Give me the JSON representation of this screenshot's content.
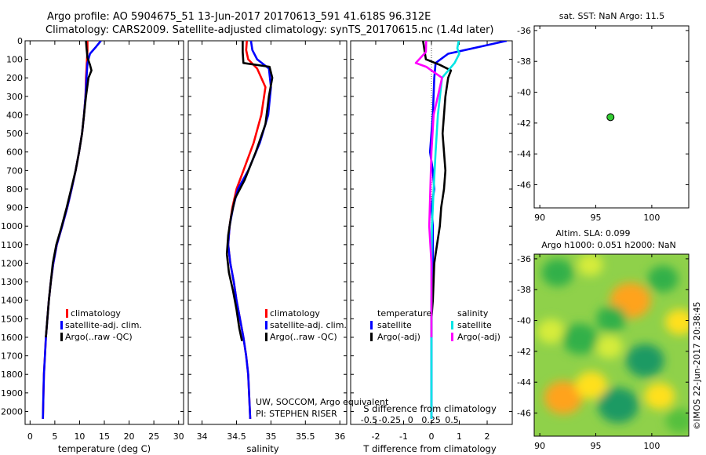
{
  "header": {
    "title1": "Argo profile: AO 5904675_51 13-Jun-2017 20170613_591 41.618S 96.312E",
    "title2": "Climatology: CARS2009. Satellite-adjusted climatology: synTS_20170615.nc (1.4d later)"
  },
  "footer": {
    "credit1": "UW, SOCCOM, Argo equivalent",
    "credit2": "PI: STEPHEN RISER",
    "stamp": "©IMOS 22-Jun-2017 20:38:45"
  },
  "colors": {
    "climatology": "#ff0000",
    "satellite": "#0000ff",
    "argo": "#000000",
    "sal_satellite": "#00e5e5",
    "sal_argo": "#ff00ff",
    "map_marker": "#33cc33"
  },
  "chart_data": [
    {
      "id": "temperature",
      "type": "line",
      "xlabel": "temperature (deg C)",
      "ylabel": "",
      "xlim": [
        -1,
        31
      ],
      "ylim": [
        2070,
        0
      ],
      "xticks": [
        0,
        5,
        10,
        15,
        20,
        25,
        30
      ],
      "yticks": [
        0,
        100,
        200,
        300,
        400,
        500,
        600,
        700,
        800,
        900,
        1000,
        1100,
        1200,
        1300,
        1400,
        1500,
        1600,
        1700,
        1800,
        1900,
        2000
      ],
      "legend": [
        "climatology",
        "satellite-adj. clim.",
        "Argo(..raw -QC)"
      ],
      "series": [
        {
          "name": "climatology",
          "color": "#ff0000",
          "x": [
            11.6,
            11.6,
            11.5,
            11.4,
            11.3,
            11.2,
            10.9,
            10.5,
            9.9,
            9.2,
            8.4,
            7.5,
            6.5,
            5.4,
            4.7,
            4.2,
            3.8,
            3.5,
            3.2,
            3.0,
            2.8,
            2.7,
            2.6
          ],
          "y": [
            0,
            50,
            100,
            150,
            200,
            300,
            400,
            500,
            600,
            700,
            800,
            900,
            1000,
            1100,
            1200,
            1300,
            1400,
            1500,
            1600,
            1700,
            1800,
            1900,
            2040
          ]
        },
        {
          "name": "satellite-adj. clim.",
          "color": "#0000ff",
          "x": [
            14.3,
            13.4,
            12.1,
            11.6,
            11.4,
            11.2,
            10.9,
            10.5,
            9.9,
            9.2,
            8.4,
            7.5,
            6.5,
            5.4,
            4.7,
            4.2,
            3.8,
            3.5,
            3.2,
            3.0,
            2.8,
            2.7,
            2.6
          ],
          "y": [
            0,
            30,
            70,
            120,
            200,
            300,
            400,
            500,
            600,
            700,
            800,
            900,
            1000,
            1100,
            1200,
            1300,
            1400,
            1500,
            1600,
            1700,
            1800,
            1900,
            2040
          ]
        },
        {
          "name": "Argo(..raw -QC)",
          "color": "#000000",
          "x": [
            11.3,
            11.4,
            11.6,
            12.1,
            12.4,
            11.8,
            11.3,
            10.9,
            10.5,
            9.9,
            9.2,
            8.3,
            7.4,
            6.4,
            5.3,
            4.6,
            4.2,
            3.8,
            3.5,
            3.2
          ],
          "y": [
            0,
            40,
            90,
            130,
            160,
            200,
            300,
            400,
            500,
            600,
            700,
            800,
            900,
            1000,
            1100,
            1200,
            1300,
            1400,
            1500,
            1600
          ]
        }
      ]
    },
    {
      "id": "salinity",
      "type": "line",
      "xlabel": "salinity",
      "ylabel": "",
      "xlim": [
        33.8,
        36.1
      ],
      "ylim": [
        2070,
        0
      ],
      "xticks": [
        34,
        34.5,
        35,
        35.5,
        36
      ],
      "xticklabels": [
        "34",
        "34.5",
        "35",
        "35.5",
        "36"
      ],
      "legend": [
        "climatology",
        "satellite-adj. clim.",
        "Argo(..raw -QC)"
      ],
      "series": [
        {
          "name": "climatology",
          "color": "#ff0000",
          "x": [
            34.65,
            34.64,
            34.67,
            34.8,
            34.92,
            34.86,
            34.75,
            34.6,
            34.5,
            34.44,
            34.4,
            34.38,
            34.41,
            34.46,
            34.5,
            34.55,
            34.6,
            34.64,
            34.67,
            34.7
          ],
          "y": [
            0,
            50,
            100,
            150,
            250,
            400,
            550,
            700,
            800,
            900,
            1000,
            1100,
            1200,
            1300,
            1400,
            1500,
            1600,
            1700,
            1800,
            2040
          ]
        },
        {
          "name": "satellite-adj. clim.",
          "color": "#0000ff",
          "x": [
            34.71,
            34.73,
            34.8,
            34.97,
            35.0,
            34.96,
            34.84,
            34.67,
            34.52,
            34.45,
            34.4,
            34.38,
            34.41,
            34.46,
            34.5,
            34.55,
            34.6,
            34.64,
            34.67,
            34.7
          ],
          "y": [
            0,
            50,
            100,
            150,
            250,
            400,
            550,
            700,
            800,
            900,
            1000,
            1100,
            1200,
            1300,
            1400,
            1500,
            1600,
            1700,
            1800,
            2040
          ]
        },
        {
          "name": "Argo(..raw -QC)",
          "color": "#000000",
          "x": [
            34.59,
            34.59,
            34.6,
            34.98,
            35.02,
            34.97,
            34.92,
            34.78,
            34.62,
            34.48,
            34.42,
            34.38,
            34.36,
            34.39,
            34.45,
            34.5,
            34.54,
            34.58
          ],
          "y": [
            0,
            60,
            120,
            140,
            200,
            300,
            450,
            600,
            750,
            850,
            950,
            1050,
            1150,
            1250,
            1350,
            1450,
            1550,
            1620
          ]
        }
      ]
    },
    {
      "id": "difference",
      "type": "line",
      "xlabel": "T difference from climatology",
      "xlabel_top": "S difference from climatology",
      "ylabel": "",
      "xlim": [
        -2.9,
        2.9
      ],
      "ylim": [
        2070,
        0
      ],
      "xticks": [
        -2,
        -1,
        0,
        1,
        2
      ],
      "xticks_top": [
        -0.5,
        -0.25,
        0,
        0.25,
        0.5
      ],
      "xticklabels_top": [
        "-0.5",
        "-0.25",
        "0",
        "0.25",
        "0.5"
      ],
      "legend_temperature_title": "temperature",
      "legend_salinity_title": "salinity",
      "legend_temperature": [
        "satellite",
        "Argo(-adj)"
      ],
      "legend_salinity": [
        "satellite",
        "Argo(-adj)"
      ],
      "series": [
        {
          "name": "T satellite",
          "color": "#0000ff",
          "x": [
            2.7,
            1.8,
            1.2,
            0.6,
            0.15,
            0.1,
            0.05,
            0.0,
            -0.05,
            0.05,
            0.1,
            0.0,
            0.05,
            0.05,
            0.0,
            0.0,
            0.0,
            0.0
          ],
          "y": [
            0,
            30,
            50,
            70,
            120,
            200,
            400,
            500,
            600,
            700,
            800,
            900,
            1000,
            1200,
            1400,
            1600,
            1800,
            2040
          ]
        },
        {
          "name": "T Argo(-adj)",
          "color": "#000000",
          "x": [
            -0.3,
            -0.25,
            -0.2,
            0.3,
            0.7,
            0.6,
            0.5,
            0.45,
            0.4,
            0.5,
            0.45,
            0.35,
            0.3,
            0.2,
            0.1,
            0.05,
            0.0,
            0.0
          ],
          "y": [
            0,
            50,
            100,
            130,
            160,
            200,
            300,
            400,
            500,
            700,
            800,
            900,
            1000,
            1100,
            1200,
            1400,
            1500,
            1600
          ]
        },
        {
          "name": "S satellite",
          "color": "#00e5e5",
          "x": [
            0.98,
            0.93,
            1.0,
            0.83,
            0.38,
            0.23,
            0.15,
            0.08,
            0.02,
            0.0,
            0.0,
            0.0,
            0.0
          ],
          "y": [
            0,
            40,
            70,
            120,
            200,
            400,
            600,
            800,
            1000,
            1200,
            1400,
            1800,
            2040
          ]
        },
        {
          "name": "S Argo(-adj)",
          "color": "#ff00ff",
          "x": [
            -0.19,
            -0.2,
            -0.56,
            -0.19,
            0.38,
            0.08,
            0.0,
            -0.04,
            -0.08,
            0.0,
            0.0,
            0.0
          ],
          "y": [
            0,
            60,
            120,
            140,
            200,
            400,
            600,
            800,
            1000,
            1200,
            1400,
            1600
          ]
        }
      ]
    },
    {
      "id": "location-map",
      "type": "scatter",
      "title": "sat. SST: NaN Argo: 11.5",
      "xlabel": "",
      "ylabel": "",
      "xlim": [
        89.5,
        103.3
      ],
      "ylim": [
        -47.5,
        -35.7
      ],
      "xticks": [
        90,
        95,
        100
      ],
      "yticks": [
        -36,
        -38,
        -40,
        -42,
        -44,
        -46
      ],
      "points": [
        {
          "x": 96.312,
          "y": -41.618
        }
      ]
    },
    {
      "id": "sla-map",
      "type": "heatmap",
      "title1": "Altim. SLA: 0.099",
      "title2": "Argo h1000: 0.051 h2000: NaN",
      "xlabel": "",
      "ylabel": "",
      "xlim": [
        89.5,
        103.3
      ],
      "ylim": [
        -47.5,
        -35.7
      ],
      "xticks": [
        90,
        95,
        100
      ],
      "yticks": [
        -36,
        -38,
        -40,
        -42,
        -44,
        -46
      ],
      "blobs": [
        {
          "x": 98.1,
          "y": -38.7,
          "v": 0.9
        },
        {
          "x": 92.1,
          "y": -45.0,
          "v": 0.8
        },
        {
          "x": 94.6,
          "y": -44.2,
          "v": 0.55
        },
        {
          "x": 100.7,
          "y": -44.9,
          "v": 0.5
        },
        {
          "x": 91.0,
          "y": -40.7,
          "v": 0.4
        },
        {
          "x": 102.5,
          "y": -40.1,
          "v": 0.45
        },
        {
          "x": 96.2,
          "y": -41.7,
          "v": 0.35
        },
        {
          "x": 97.0,
          "y": -45.5,
          "v": -0.9
        },
        {
          "x": 99.4,
          "y": -42.6,
          "v": -0.8
        },
        {
          "x": 93.6,
          "y": -41.2,
          "v": -0.7
        },
        {
          "x": 96.4,
          "y": -39.9,
          "v": -0.5
        },
        {
          "x": 91.6,
          "y": -36.9,
          "v": -0.55
        },
        {
          "x": 101.0,
          "y": -37.3,
          "v": -0.5
        },
        {
          "x": 94.5,
          "y": -36.4,
          "v": 0.3
        },
        {
          "x": 102.5,
          "y": -46.5,
          "v": -0.4
        }
      ]
    }
  ]
}
